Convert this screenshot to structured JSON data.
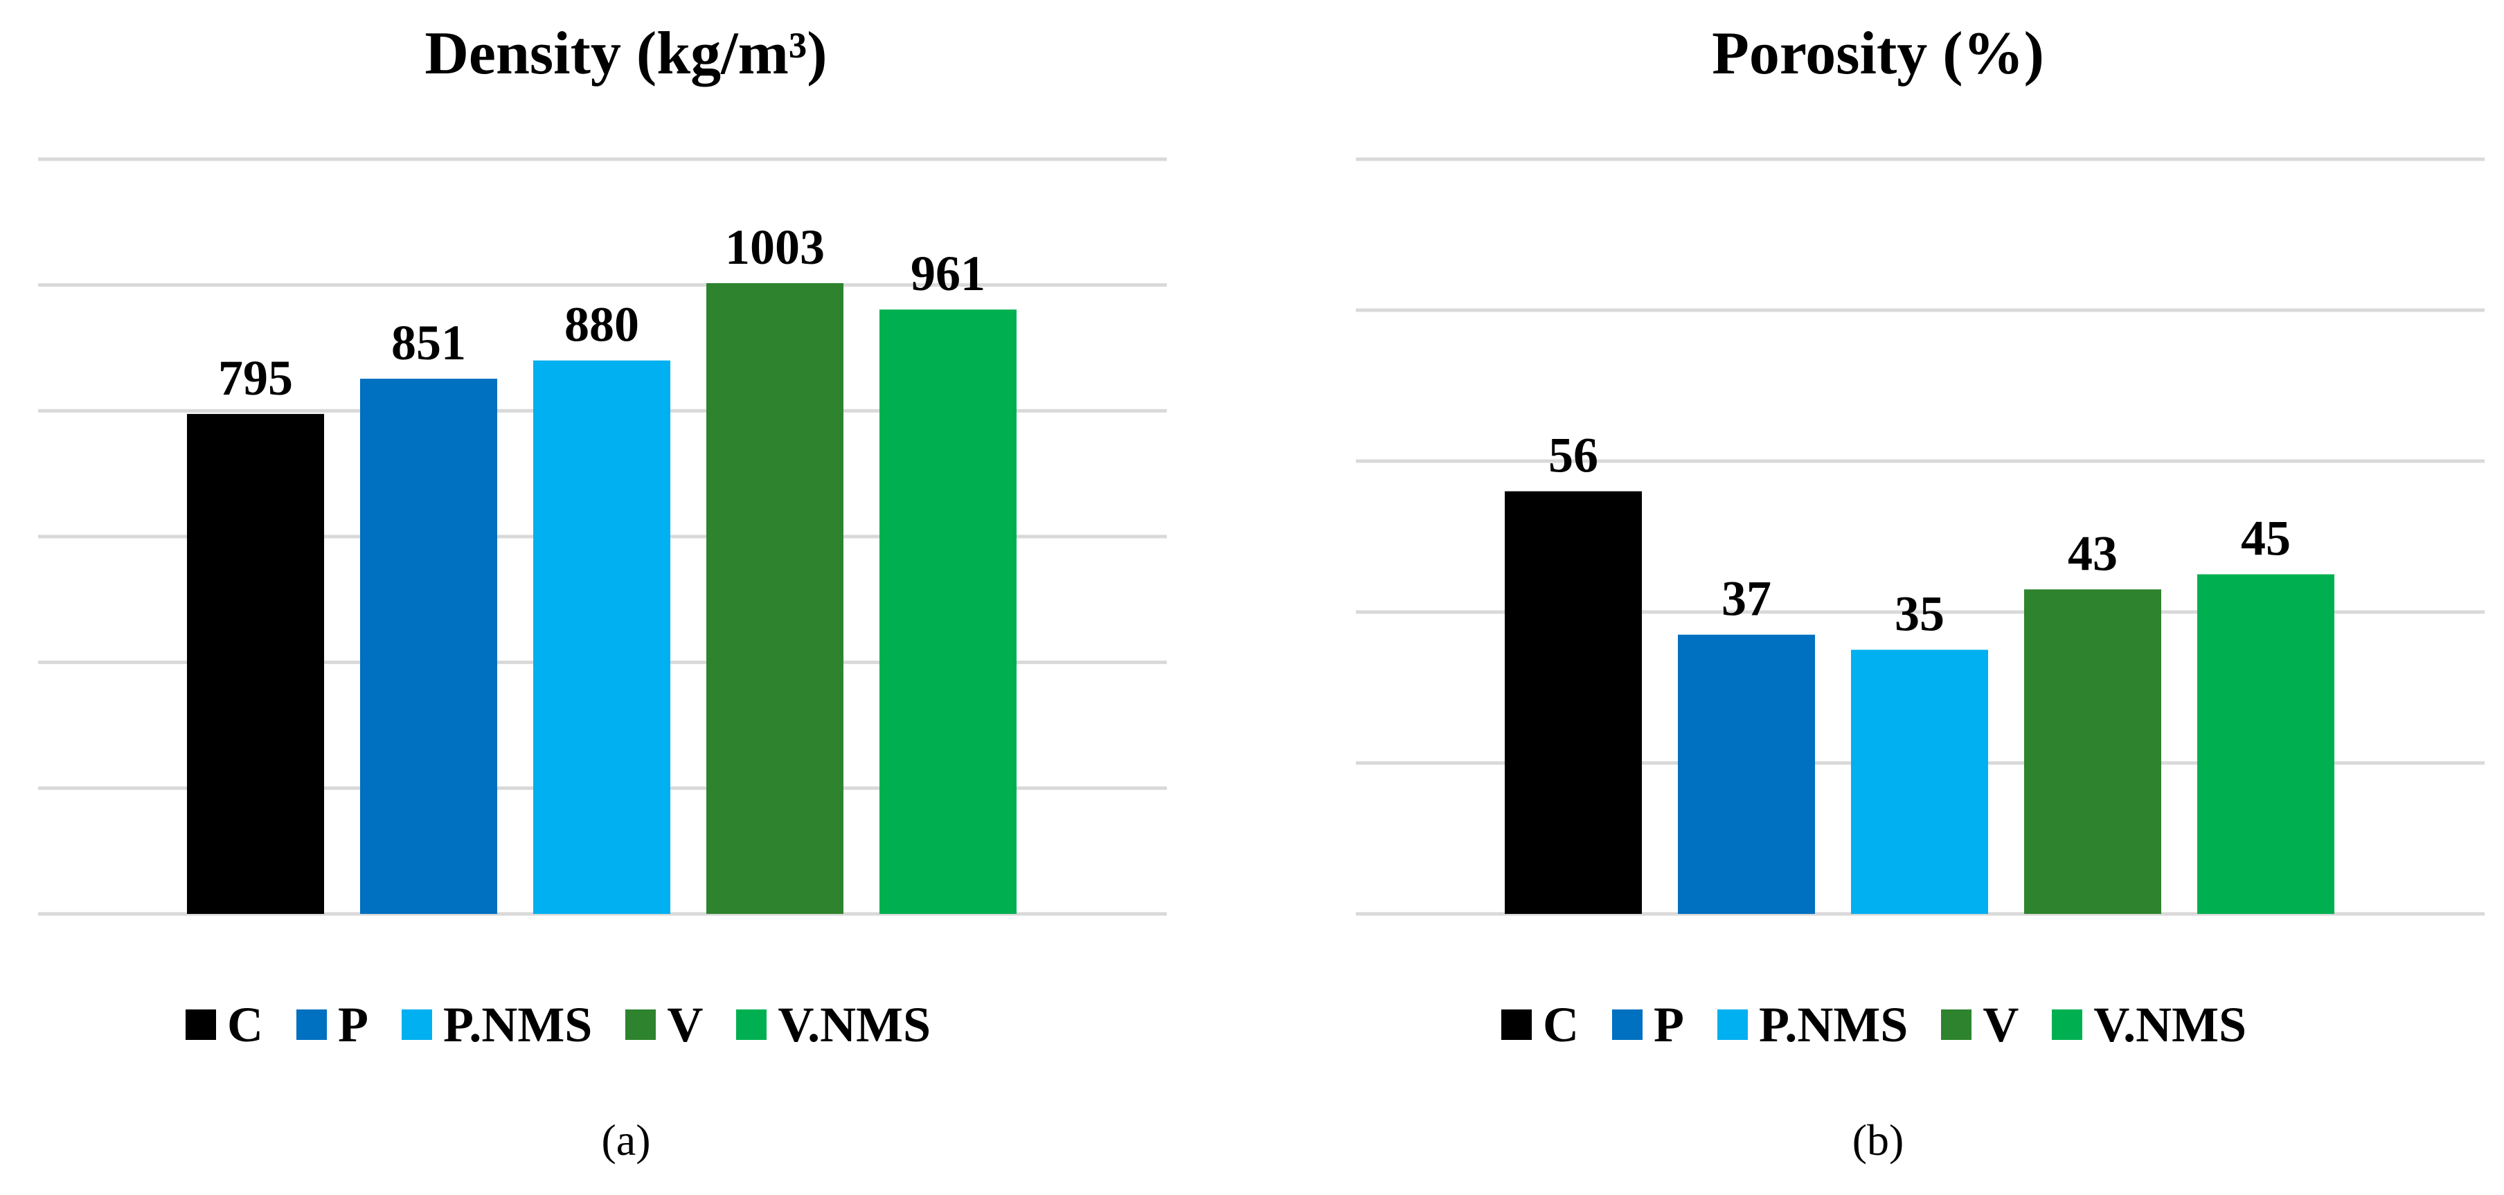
{
  "chart_data": [
    {
      "type": "bar",
      "title": "Density (kg/m³)",
      "caption": "(a)",
      "categories": [
        "C",
        "P",
        "P.NMS",
        "V",
        "V.NMS"
      ],
      "values": [
        795,
        851,
        880,
        1003,
        961
      ],
      "colors": [
        "#000000",
        "#0070C0",
        "#00B0F0",
        "#2E832E",
        "#00B050"
      ],
      "ylim": [
        0,
        1200
      ],
      "gridlines": [
        0,
        200,
        400,
        600,
        800,
        1000,
        1200
      ],
      "grid": true,
      "legend": "bottom"
    },
    {
      "type": "bar",
      "title": "Porosity (%)",
      "caption": "(b)",
      "categories": [
        "C",
        "P",
        "P.NMS",
        "V",
        "V.NMS"
      ],
      "values": [
        56,
        37,
        35,
        43,
        45
      ],
      "colors": [
        "#000000",
        "#0070C0",
        "#00B0F0",
        "#2E832E",
        "#00B050"
      ],
      "ylim": [
        0,
        100
      ],
      "gridlines": [
        0,
        20,
        40,
        60,
        80,
        100
      ],
      "grid": true,
      "legend": "bottom"
    }
  ]
}
